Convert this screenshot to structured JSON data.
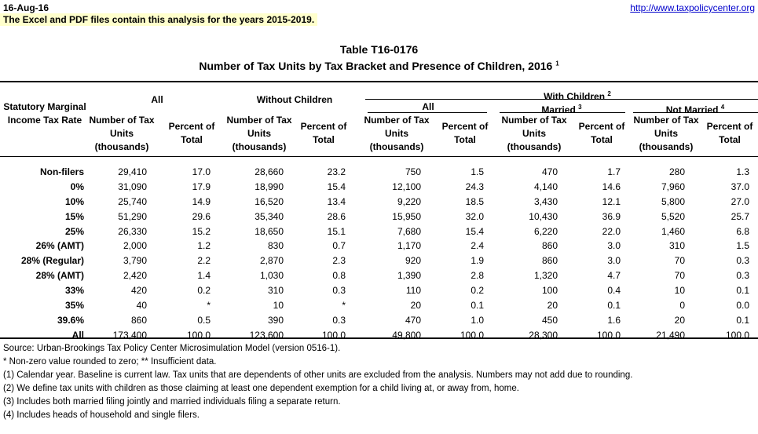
{
  "header": {
    "date": "16-Aug-16",
    "note": "The Excel and PDF files contain this analysis for the years 2015-2019.",
    "url": "http://www.taxpolicycenter.org"
  },
  "title": {
    "table_id": "Table T16-0176",
    "subtitle": "Number of Tax Units by Tax Bracket and Presence of Children, 2016",
    "subtitle_note": "1"
  },
  "columns": {
    "row_label": "Statutory Marginal Income Tax Rate",
    "all": "All",
    "without": "Without Children",
    "with": "With Children",
    "with_note": "2",
    "with_all": "All",
    "married": "Married",
    "married_note": "3",
    "not_married": "Not Married",
    "not_married_note": "4",
    "units": "Number of Tax Units (thousands)",
    "pct": "Percent of Total"
  },
  "rows": [
    {
      "label": "Non-filers",
      "v": [
        "29,410",
        "17.0",
        "28,660",
        "23.2",
        "750",
        "1.5",
        "470",
        "1.7",
        "280",
        "1.3"
      ]
    },
    {
      "label": "0%",
      "v": [
        "31,090",
        "17.9",
        "18,990",
        "15.4",
        "12,100",
        "24.3",
        "4,140",
        "14.6",
        "7,960",
        "37.0"
      ]
    },
    {
      "label": "10%",
      "v": [
        "25,740",
        "14.9",
        "16,520",
        "13.4",
        "9,220",
        "18.5",
        "3,430",
        "12.1",
        "5,800",
        "27.0"
      ]
    },
    {
      "label": "15%",
      "v": [
        "51,290",
        "29.6",
        "35,340",
        "28.6",
        "15,950",
        "32.0",
        "10,430",
        "36.9",
        "5,520",
        "25.7"
      ]
    },
    {
      "label": "25%",
      "v": [
        "26,330",
        "15.2",
        "18,650",
        "15.1",
        "7,680",
        "15.4",
        "6,220",
        "22.0",
        "1,460",
        "6.8"
      ]
    },
    {
      "label": "26% (AMT)",
      "v": [
        "2,000",
        "1.2",
        "830",
        "0.7",
        "1,170",
        "2.4",
        "860",
        "3.0",
        "310",
        "1.5"
      ]
    },
    {
      "label": "28% (Regular)",
      "v": [
        "3,790",
        "2.2",
        "2,870",
        "2.3",
        "920",
        "1.9",
        "860",
        "3.0",
        "70",
        "0.3"
      ]
    },
    {
      "label": "28% (AMT)",
      "v": [
        "2,420",
        "1.4",
        "1,030",
        "0.8",
        "1,390",
        "2.8",
        "1,320",
        "4.7",
        "70",
        "0.3"
      ]
    },
    {
      "label": "33%",
      "v": [
        "420",
        "0.2",
        "310",
        "0.3",
        "110",
        "0.2",
        "100",
        "0.4",
        "10",
        "0.1"
      ]
    },
    {
      "label": "35%",
      "v": [
        "40",
        "*",
        "10",
        "*",
        "20",
        "0.1",
        "20",
        "0.1",
        "0",
        "0.0"
      ]
    },
    {
      "label": "39.6%",
      "v": [
        "860",
        "0.5",
        "390",
        "0.3",
        "470",
        "1.0",
        "450",
        "1.6",
        "20",
        "0.1"
      ]
    },
    {
      "label": "All",
      "v": [
        "173,400",
        "100.0",
        "123,600",
        "100.0",
        "49,800",
        "100.0",
        "28,300",
        "100.0",
        "21,490",
        "100.0"
      ]
    }
  ],
  "footnotes": [
    "Source: Urban-Brookings Tax Policy Center Microsimulation Model (version 0516-1).",
    "* Non-zero value rounded to zero; ** Insufficient data.",
    "(1) Calendar year. Baseline is current law. Tax units that are dependents of other units are excluded from the analysis. Numbers may not add due to rounding.",
    "(2) We define tax units with children as those claiming at least one dependent exemption for a child living at, or away from, home.",
    "(3) Includes both married filing jointly and married individuals filing a separate return.",
    "(4) Includes heads of household and single filers."
  ]
}
